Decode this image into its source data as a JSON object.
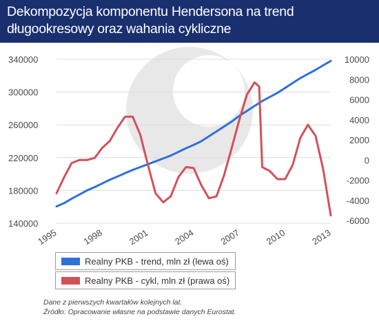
{
  "title": "Dekompozycja komponentu Hendersona na trend długookresowy oraz wahania cykliczne",
  "chart_data": {
    "type": "line",
    "x_ticks": [
      "1995",
      "1998",
      "2001",
      "2004",
      "2007",
      "2010",
      "2013"
    ],
    "x_range": [
      1995,
      2013
    ],
    "y_left": {
      "ticks": [
        "140000",
        "180000",
        "220000",
        "260000",
        "300000",
        "340000"
      ],
      "range": [
        140000,
        340000
      ]
    },
    "y_right": {
      "ticks": [
        "-6000",
        "-4000",
        "-2000",
        "0",
        "2000",
        "4000",
        "6000",
        "8000",
        "10000"
      ],
      "range": [
        -6000,
        10000
      ]
    },
    "grid": "horizontal",
    "series": [
      {
        "name": "Realny PKB - trend, mln zł (lewa oś)",
        "axis": "left",
        "color": "#2f6fd9",
        "points": [
          [
            1995.0,
            160500
          ],
          [
            1995.5,
            164500
          ],
          [
            1996.0,
            170000
          ],
          [
            1996.5,
            175000
          ],
          [
            1997.0,
            180000
          ],
          [
            1997.5,
            184000
          ],
          [
            1998.0,
            188500
          ],
          [
            1998.5,
            193000
          ],
          [
            1999.0,
            197000
          ],
          [
            1999.5,
            201000
          ],
          [
            2000.0,
            205000
          ],
          [
            2000.5,
            208500
          ],
          [
            2001.0,
            212000
          ],
          [
            2001.5,
            215500
          ],
          [
            2002.0,
            219000
          ],
          [
            2002.5,
            222500
          ],
          [
            2003.0,
            227000
          ],
          [
            2003.5,
            231500
          ],
          [
            2004.0,
            235500
          ],
          [
            2004.5,
            240000
          ],
          [
            2005.0,
            246000
          ],
          [
            2005.5,
            252000
          ],
          [
            2006.0,
            258000
          ],
          [
            2006.5,
            264000
          ],
          [
            2007.0,
            271000
          ],
          [
            2007.5,
            277000
          ],
          [
            2008.0,
            283000
          ],
          [
            2008.5,
            289000
          ],
          [
            2009.0,
            294000
          ],
          [
            2009.5,
            299000
          ],
          [
            2010.0,
            305000
          ],
          [
            2010.5,
            311000
          ],
          [
            2011.0,
            317000
          ],
          [
            2011.5,
            322000
          ],
          [
            2012.0,
            327000
          ],
          [
            2012.5,
            332500
          ],
          [
            2013.0,
            338000
          ]
        ]
      },
      {
        "name": "Realny PKB - cykl, mln zł (prawa oś)",
        "axis": "right",
        "color": "#d2505a",
        "points": [
          [
            1995.0,
            -3300
          ],
          [
            1995.5,
            -1700
          ],
          [
            1996.0,
            -300
          ],
          [
            1996.5,
            0
          ],
          [
            1997.0,
            0
          ],
          [
            1997.5,
            200
          ],
          [
            1998.0,
            1200
          ],
          [
            1998.5,
            1900
          ],
          [
            1999.0,
            3200
          ],
          [
            1999.5,
            4300
          ],
          [
            2000.0,
            4300
          ],
          [
            2000.5,
            2500
          ],
          [
            2001.0,
            -500
          ],
          [
            2001.5,
            -3300
          ],
          [
            2002.0,
            -4200
          ],
          [
            2002.5,
            -3600
          ],
          [
            2003.0,
            -1700
          ],
          [
            2003.5,
            -700
          ],
          [
            2004.0,
            -800
          ],
          [
            2004.5,
            -2500
          ],
          [
            2005.0,
            -3800
          ],
          [
            2005.5,
            -3600
          ],
          [
            2006.0,
            -1500
          ],
          [
            2006.5,
            1200
          ],
          [
            2007.0,
            4000
          ],
          [
            2007.5,
            6500
          ],
          [
            2008.0,
            7700
          ],
          [
            2008.3,
            7300
          ],
          [
            2008.5,
            -700
          ],
          [
            2009.0,
            -1100
          ],
          [
            2009.5,
            -1900
          ],
          [
            2010.0,
            -1900
          ],
          [
            2010.5,
            -500
          ],
          [
            2011.0,
            2200
          ],
          [
            2011.5,
            3500
          ],
          [
            2012.0,
            2400
          ],
          [
            2012.5,
            -900
          ],
          [
            2013.0,
            -5500
          ]
        ]
      }
    ]
  },
  "notes": [
    "Dane z pierwszych kwartałów kolejnych lat.",
    "Źródło: Opracowanie własne na podstawie danych Eurostat."
  ]
}
